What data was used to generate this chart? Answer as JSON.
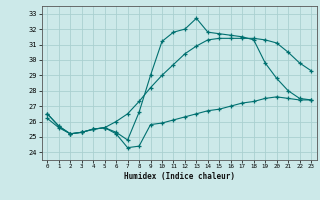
{
  "bg_color": "#cce9e9",
  "grid_color": "#aad0d0",
  "line_color": "#007070",
  "xlabel": "Humidex (Indice chaleur)",
  "xlim": [
    -0.5,
    23.5
  ],
  "ylim": [
    23.5,
    33.5
  ],
  "xticks": [
    0,
    1,
    2,
    3,
    4,
    5,
    6,
    7,
    8,
    9,
    10,
    11,
    12,
    13,
    14,
    15,
    16,
    17,
    18,
    19,
    20,
    21,
    22,
    23
  ],
  "yticks": [
    24,
    25,
    26,
    27,
    28,
    29,
    30,
    31,
    32,
    33
  ],
  "line1_x": [
    0,
    1,
    2,
    3,
    4,
    5,
    6,
    7,
    8,
    9,
    10,
    11,
    12,
    13,
    14,
    15,
    16,
    17,
    18,
    19,
    20,
    21,
    22,
    23
  ],
  "line1_y": [
    26.5,
    25.7,
    25.2,
    25.3,
    25.5,
    25.6,
    25.2,
    24.3,
    24.4,
    25.8,
    25.9,
    26.1,
    26.3,
    26.5,
    26.7,
    26.8,
    27.0,
    27.2,
    27.3,
    27.5,
    27.6,
    27.5,
    27.4,
    27.4
  ],
  "line2_x": [
    0,
    1,
    2,
    3,
    4,
    5,
    6,
    7,
    8,
    9,
    10,
    11,
    12,
    13,
    14,
    15,
    16,
    17,
    18,
    19,
    20,
    21,
    22,
    23
  ],
  "line2_y": [
    26.2,
    25.6,
    25.2,
    25.3,
    25.5,
    25.6,
    26.0,
    26.5,
    27.3,
    28.2,
    29.0,
    29.7,
    30.4,
    30.9,
    31.3,
    31.4,
    31.4,
    31.4,
    31.4,
    31.3,
    31.1,
    30.5,
    29.8,
    29.3
  ],
  "line3_x": [
    0,
    1,
    2,
    3,
    4,
    5,
    6,
    7,
    8,
    9,
    10,
    11,
    12,
    13,
    14,
    15,
    16,
    17,
    18,
    19,
    20,
    21,
    22,
    23
  ],
  "line3_y": [
    26.5,
    25.7,
    25.2,
    25.3,
    25.5,
    25.6,
    25.3,
    24.8,
    26.6,
    29.0,
    31.2,
    31.8,
    32.0,
    32.7,
    31.8,
    31.7,
    31.6,
    31.5,
    31.3,
    29.8,
    28.8,
    28.0,
    27.5,
    27.4
  ]
}
